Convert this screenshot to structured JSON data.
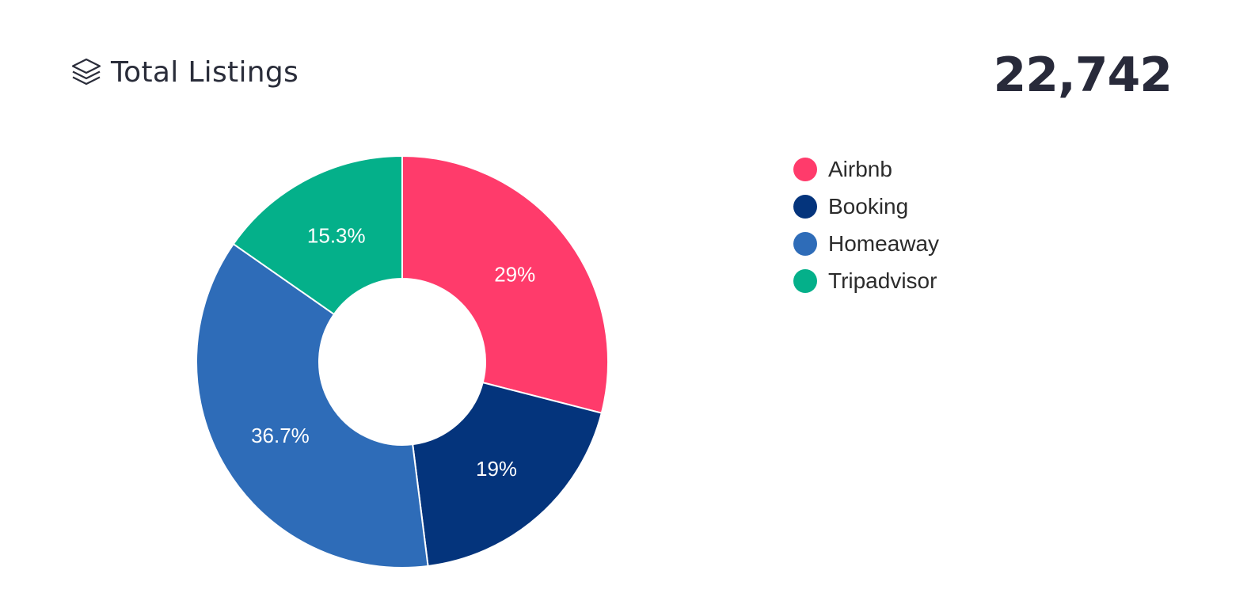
{
  "header": {
    "title": "Total Listings",
    "icon": "layers-icon",
    "total": "22,742"
  },
  "chart_data": {
    "type": "pie",
    "donut": true,
    "categories": [
      "Airbnb",
      "Booking",
      "Homeaway",
      "Tripadvisor"
    ],
    "values": [
      29,
      19,
      36.7,
      15.3
    ],
    "labels": [
      "29%",
      "19%",
      "36.7%",
      "15.3%"
    ],
    "colors": [
      "#ff3b6b",
      "#04347c",
      "#2e6cb8",
      "#04b08a"
    ],
    "legend_position": "right"
  }
}
